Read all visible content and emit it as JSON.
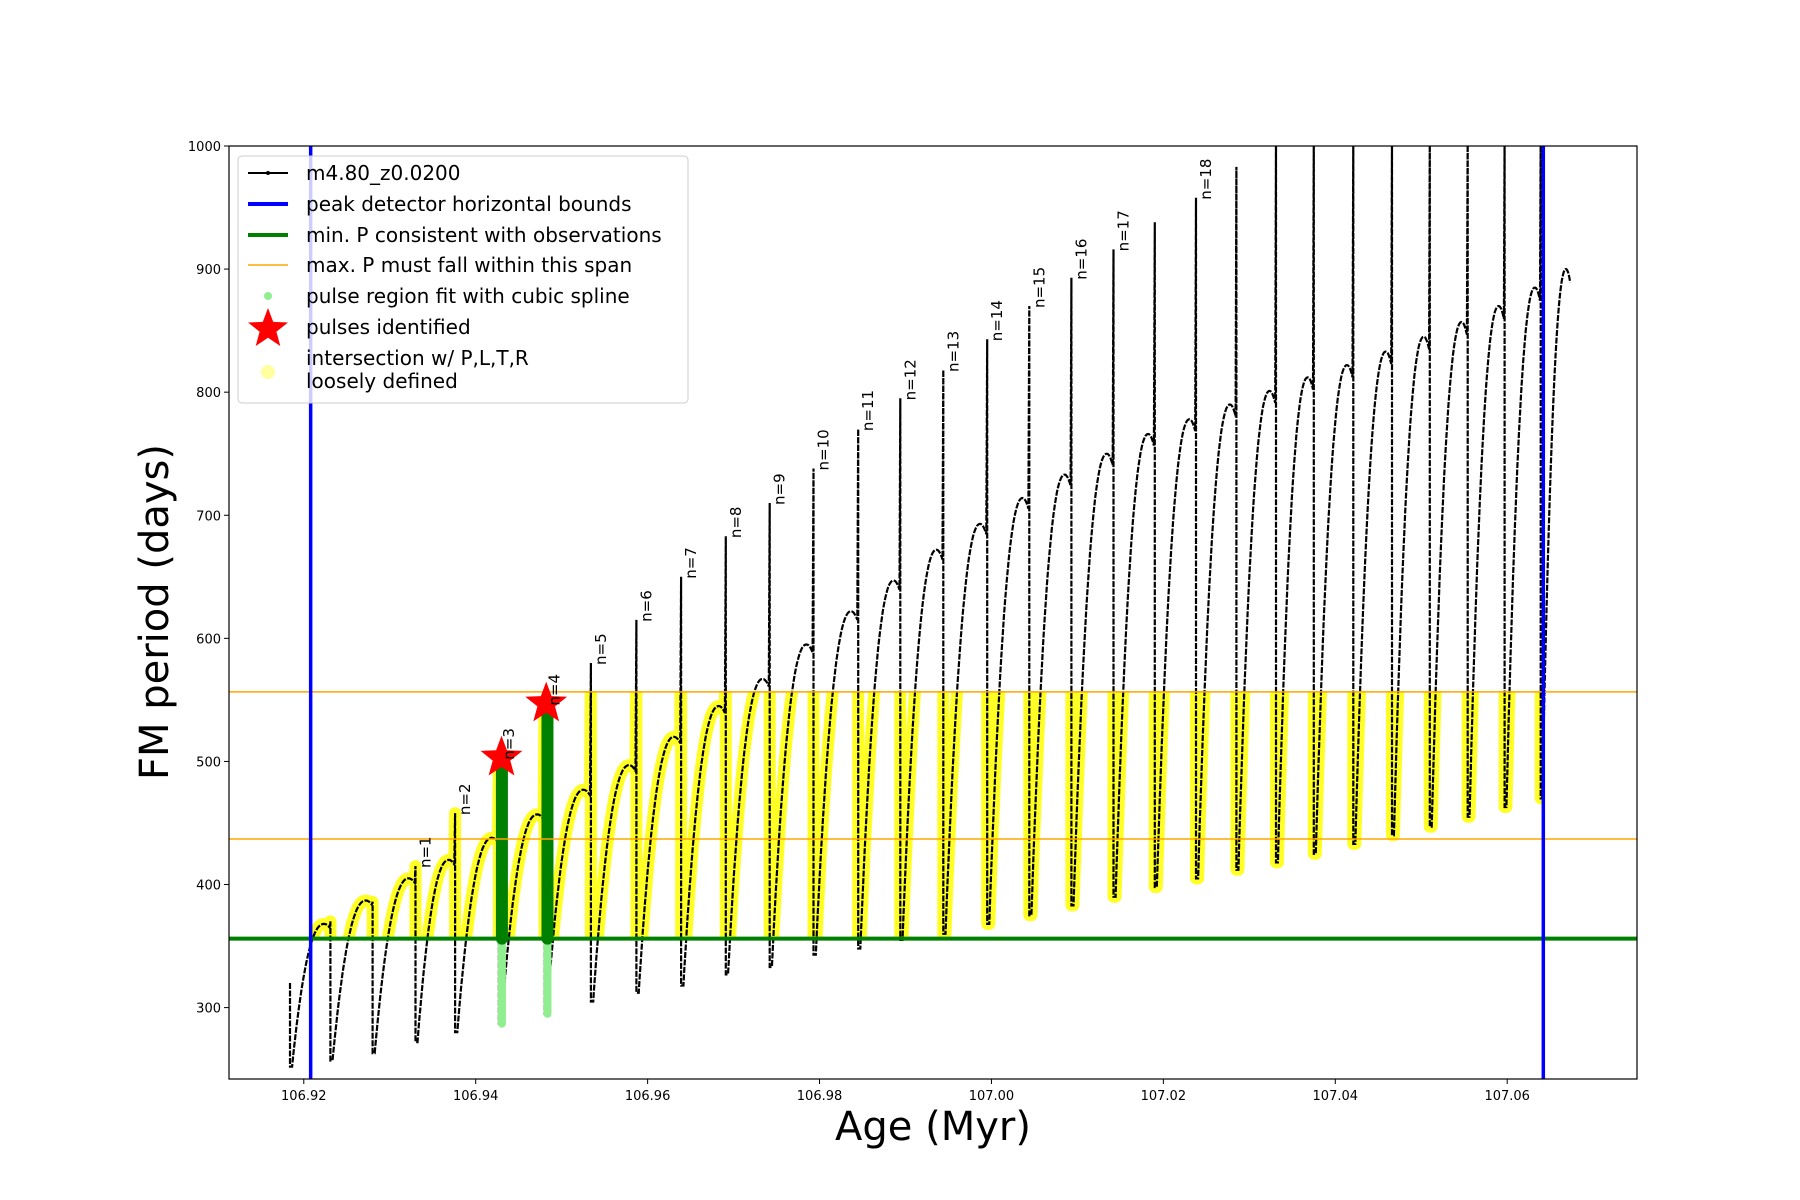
{
  "chart_data": {
    "type": "line",
    "title": "",
    "xlabel": "Age (Myr)",
    "ylabel": "FM period (days)",
    "xlim": [
      106.9113,
      107.0751
    ],
    "ylim": [
      242,
      1000
    ],
    "xticks": [
      "106.92",
      "106.94",
      "106.96",
      "106.98",
      "107.00",
      "107.02",
      "107.04",
      "107.06"
    ],
    "yticks": [
      "300",
      "400",
      "500",
      "600",
      "700",
      "800",
      "900",
      "1000"
    ],
    "grid": false,
    "legend_placement": "upper-left",
    "legend": [
      {
        "label": "m4.80_z0.0200",
        "color": "#000000",
        "kind": "line-marker"
      },
      {
        "label": "peak detector horizontal bounds",
        "color": "#0000ff",
        "kind": "thick-line"
      },
      {
        "label": "min. P consistent with observations",
        "color": "#008000",
        "kind": "thick-line"
      },
      {
        "label": "max. P must fall within this span",
        "color": "#ffa500",
        "kind": "thin-line"
      },
      {
        "label": "pulse region fit with cubic spline",
        "color": "#90ee90",
        "kind": "dot"
      },
      {
        "label": "pulses identified",
        "color": "#ff0000",
        "kind": "star"
      },
      {
        "label": "intersection w/ P,L,T,R",
        "label2": "loosely defined",
        "color": "#ffffa0",
        "kind": "circle"
      }
    ],
    "series": {
      "name": "m4.80_z0.0200",
      "pulse_ages": [
        106.9184,
        106.9231,
        106.928,
        106.933,
        106.9376,
        106.9427,
        106.948,
        106.9534,
        106.9587,
        106.9639,
        106.9691,
        106.9742,
        106.9793,
        106.9845,
        106.9894,
        106.9944,
        106.9995,
        107.0044,
        107.0093,
        107.0142,
        107.019,
        107.0238,
        107.0285,
        107.0331,
        107.0375,
        107.0421,
        107.0466,
        107.051,
        107.0554,
        107.0597,
        107.0639
      ],
      "end_age": 107.0674,
      "spike_tops": [
        320,
        370,
        386,
        415,
        458,
        503,
        547,
        580,
        615,
        650,
        683,
        710,
        738,
        770,
        795,
        818,
        843,
        870,
        893,
        916,
        938,
        958,
        983,
        1010,
        1010,
        1010,
        1010,
        1010,
        1010,
        1010,
        1010
      ],
      "troughs": [
        252,
        257,
        263,
        272,
        280,
        287,
        295,
        305,
        312,
        318,
        327,
        333,
        343,
        348,
        355,
        360,
        368,
        375,
        383,
        390,
        398,
        405,
        412,
        418,
        425,
        433,
        440,
        447,
        455,
        463,
        470
      ],
      "arc_peaks": [
        368,
        387,
        405,
        420,
        438,
        457,
        477,
        497,
        520,
        545,
        567,
        595,
        622,
        647,
        672,
        693,
        714,
        733,
        750,
        766,
        778,
        790,
        801,
        812,
        822,
        833,
        845,
        857,
        870,
        885,
        900
      ]
    },
    "pulse_labels": [
      {
        "text": "n=1",
        "age": 106.933,
        "p": 415
      },
      {
        "text": "n=2",
        "age": 106.9376,
        "p": 458
      },
      {
        "text": "n=3",
        "age": 106.9427,
        "p": 503
      },
      {
        "text": "n=4",
        "age": 106.948,
        "p": 547
      },
      {
        "text": "n=5",
        "age": 106.9534,
        "p": 580
      },
      {
        "text": "n=6",
        "age": 106.9587,
        "p": 615
      },
      {
        "text": "n=7",
        "age": 106.9639,
        "p": 650
      },
      {
        "text": "n=8",
        "age": 106.9691,
        "p": 683
      },
      {
        "text": "n=9",
        "age": 106.9742,
        "p": 710
      },
      {
        "text": "n=10",
        "age": 106.9793,
        "p": 738
      },
      {
        "text": "n=11",
        "age": 106.9845,
        "p": 770
      },
      {
        "text": "n=12",
        "age": 106.9894,
        "p": 795
      },
      {
        "text": "n=13",
        "age": 106.9944,
        "p": 818
      },
      {
        "text": "n=14",
        "age": 106.9995,
        "p": 843
      },
      {
        "text": "n=15",
        "age": 107.0044,
        "p": 870
      },
      {
        "text": "n=16",
        "age": 107.0093,
        "p": 893
      },
      {
        "text": "n=17",
        "age": 107.0142,
        "p": 916
      },
      {
        "text": "n=18",
        "age": 107.0238,
        "p": 958
      }
    ],
    "peak_detector_bounds": [
      106.9208,
      107.0642
    ],
    "min_P": 356,
    "max_P_span": [
      437,
      556.5
    ],
    "pulses_identified": [
      {
        "age": 106.943,
        "p": 503
      },
      {
        "age": 106.9482,
        "p": 547
      }
    ],
    "spline_fit_pulses": [
      106.9427,
      106.948
    ],
    "colors": {
      "series": "#000000",
      "bounds": "#0000ff",
      "minP": "#008000",
      "maxP": "#ffa500",
      "spline": "#90ee90",
      "spline_dark": "#008000",
      "stars": "#ff0000",
      "intersection": "#ffff00"
    }
  }
}
